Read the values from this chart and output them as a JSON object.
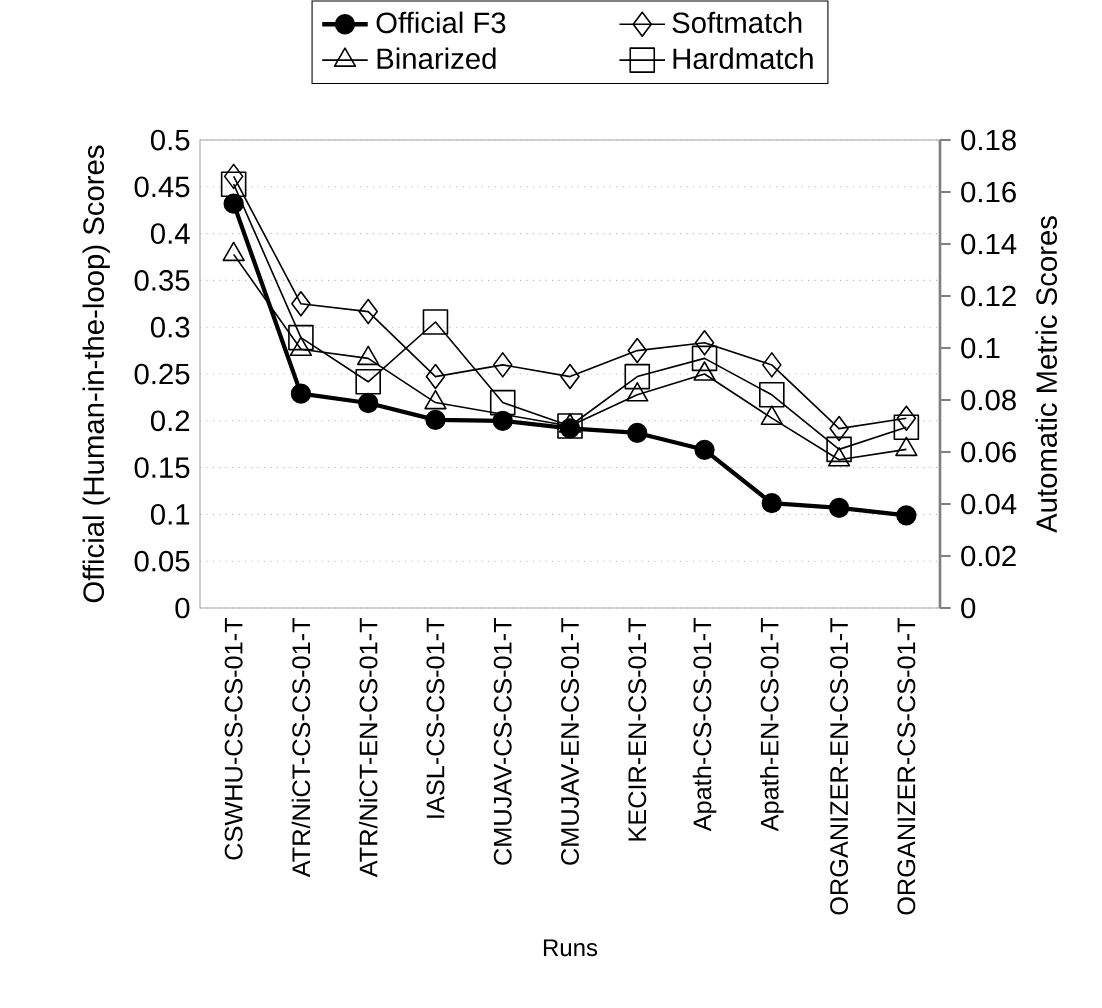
{
  "chart_data": {
    "type": "line",
    "categories": [
      "CSWHU-CS-CS-01-T",
      "ATR/NiCT-CS-CS-01-T",
      "ATR/NiCT-EN-CS-01-T",
      "IASL-CS-CS-01-T",
      "CMUJAV-CS-CS-01-T",
      "CMUJAV-EN-CS-01-T",
      "KECIR-EN-CS-01-T",
      "Apath-CS-CS-01-T",
      "Apath-EN-CS-01-T",
      "ORGANIZER-EN-CS-01-T",
      "ORGANIZER-CS-CS-01-T"
    ],
    "xlabel": "Runs",
    "ylabel": "Official (Human-in-the-loop) Scores",
    "y2label": "Automatic Metric Scores",
    "series": [
      {
        "name": "Official F3",
        "color": "#000000",
        "marker": "circle",
        "axis": "y",
        "values": [
          0.432,
          0.229,
          0.219,
          0.201,
          0.2,
          0.192,
          0.187,
          0.169,
          0.112,
          0.107,
          0.099
        ]
      },
      {
        "name": "Softmatch",
        "color": "#000000",
        "marker": "diamond",
        "axis": "y2",
        "values": [
          0.166,
          0.117,
          0.114,
          0.089,
          0.0935,
          0.089,
          0.099,
          0.102,
          0.0935,
          0.069,
          0.073
        ]
      },
      {
        "name": "Binarized",
        "color": "#000000",
        "marker": "triangle",
        "axis": "y2",
        "values": [
          0.136,
          0.0995,
          0.096,
          0.079,
          null,
          0.07,
          0.082,
          0.09,
          0.073,
          0.057,
          0.061
        ]
      },
      {
        "name": "Hardmatch",
        "color": "#000000",
        "marker": "square",
        "axis": "y2",
        "values": [
          0.163,
          0.104,
          0.087,
          0.11,
          0.079,
          0.07,
          0.089,
          0.096,
          0.082,
          0.061,
          0.0695
        ]
      }
    ],
    "ylim": [
      0,
      0.5
    ],
    "yticks": [
      0,
      0.05,
      0.1,
      0.15,
      0.2,
      0.25,
      0.3,
      0.35,
      0.4,
      0.45,
      0.5
    ],
    "y2lim": [
      0,
      0.18
    ],
    "y2ticks": [
      0,
      0.02,
      0.04,
      0.06,
      0.08,
      0.1,
      0.12,
      0.14,
      0.16,
      0.18
    ],
    "grid": "y",
    "legend": "top"
  }
}
